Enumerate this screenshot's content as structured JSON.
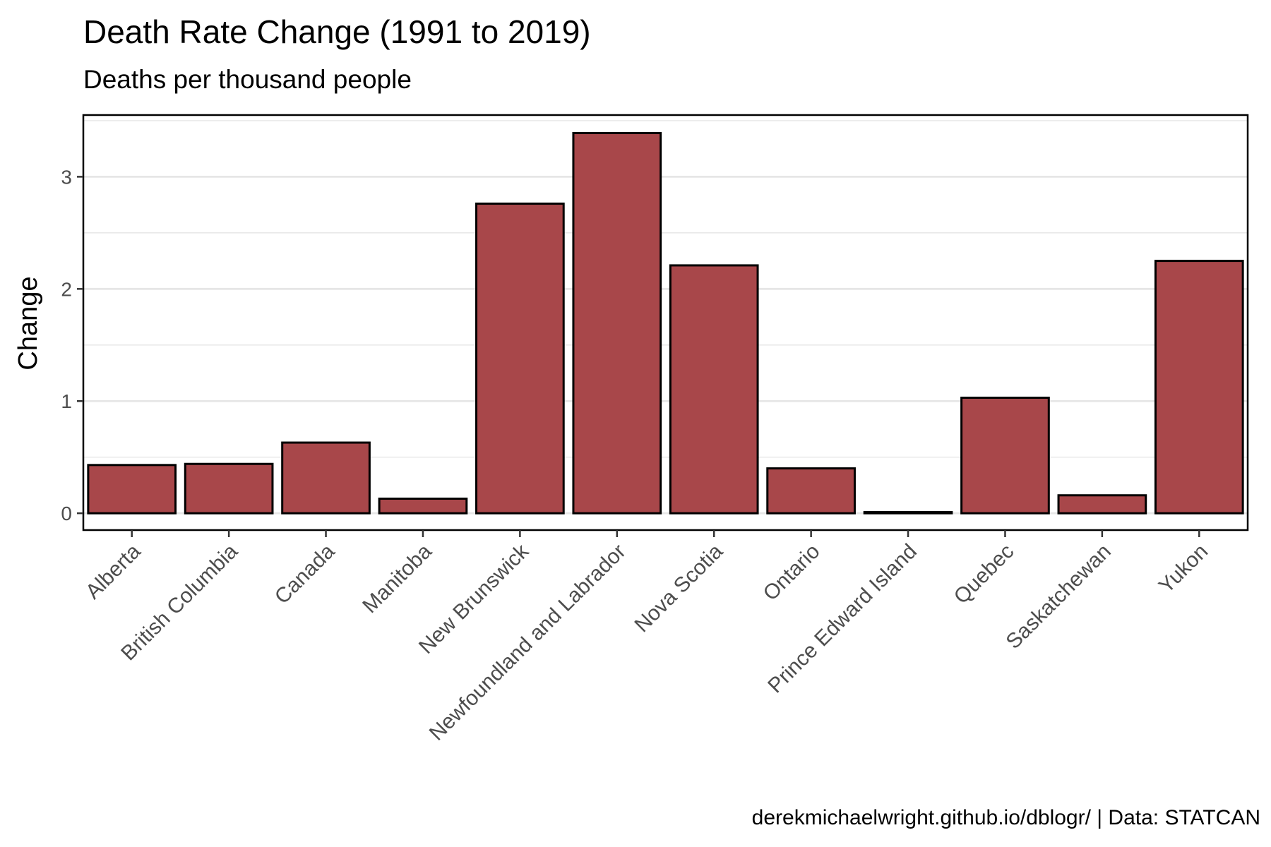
{
  "title": "Death Rate Change (1991 to 2019)",
  "subtitle": "Deaths per thousand people",
  "caption": "derekmichaelwright.github.io/dblogr/ | Data: STATCAN",
  "chart_data": {
    "type": "bar",
    "title": "Death Rate Change (1991 to 2019)",
    "subtitle": "Deaths per thousand people",
    "xlabel": "",
    "ylabel": "Change",
    "categories": [
      "Alberta",
      "British Columbia",
      "Canada",
      "Manitoba",
      "New Brunswick",
      "Newfoundland and Labrador",
      "Nova Scotia",
      "Ontario",
      "Prince Edward Island",
      "Quebec",
      "Saskatchewan",
      "Yukon"
    ],
    "values": [
      0.43,
      0.44,
      0.63,
      0.13,
      2.76,
      3.39,
      2.21,
      0.4,
      0.01,
      1.03,
      0.16,
      2.25
    ],
    "ylim": [
      -0.15,
      3.55
    ],
    "yticks": [
      0,
      1,
      2,
      3
    ],
    "grid": true,
    "legend": "none",
    "colors": {
      "bar_fill": "#a8474a",
      "bar_stroke": "#000000",
      "panel_border": "#000000",
      "grid": "#e6e6e6"
    }
  }
}
